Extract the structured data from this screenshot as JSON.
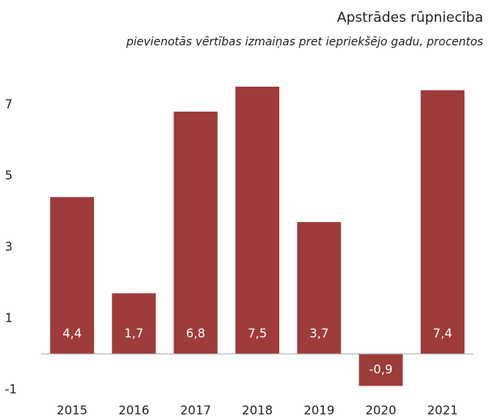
{
  "chart_data": {
    "type": "bar",
    "title": "Apstrādes rūpniecība",
    "subtitle": "pievienotās vērtības izmaiņas pret iepriekšējo gadu, procentos",
    "categories": [
      "2015",
      "2016",
      "2017",
      "2018",
      "2019",
      "2020",
      "2021"
    ],
    "values": [
      4.4,
      1.7,
      6.8,
      7.5,
      3.7,
      -0.9,
      7.4
    ],
    "value_labels": [
      "4,4",
      "1,7",
      "6,8",
      "7,5",
      "3,7",
      "-0,9",
      "7,4"
    ],
    "color": "#9e3b3b",
    "ylim": [
      -1.3,
      8
    ],
    "yticks": [
      -1,
      1,
      3,
      5,
      7
    ],
    "grid": false
  }
}
